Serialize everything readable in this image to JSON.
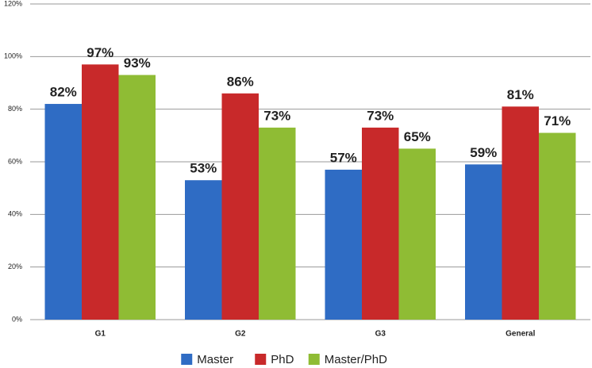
{
  "chart_data": {
    "type": "bar",
    "categories": [
      "G1",
      "G2",
      "G3",
      "General"
    ],
    "series": [
      {
        "name": "Master",
        "color": "#2f6cc4",
        "values": [
          82,
          53,
          57,
          59
        ],
        "value_labels": [
          "82%",
          "53%",
          "57%",
          "59%"
        ]
      },
      {
        "name": "PhD",
        "color": "#c8292a",
        "values": [
          97,
          86,
          73,
          81
        ],
        "value_labels": [
          "97%",
          "86%",
          "73%",
          "81%"
        ]
      },
      {
        "name": "Master/PhD",
        "color": "#8fbc34",
        "values": [
          93,
          73,
          65,
          71
        ],
        "value_labels": [
          "93%",
          "73%",
          "65%",
          "71%"
        ]
      }
    ],
    "ylim": [
      0,
      120
    ],
    "yticks": [
      {
        "value": 0,
        "label": "0%"
      },
      {
        "value": 20,
        "label": "20%"
      },
      {
        "value": 40,
        "label": "40%"
      },
      {
        "value": 60,
        "label": "60%"
      },
      {
        "value": 80,
        "label": "80%"
      },
      {
        "value": 100,
        "label": "100%"
      },
      {
        "value": 120,
        "label": "120%"
      }
    ],
    "grid": true,
    "legend": "bottom"
  }
}
